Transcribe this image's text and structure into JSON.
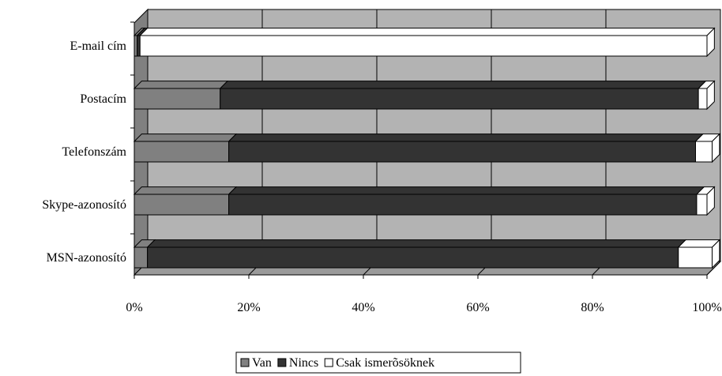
{
  "chart_data": {
    "type": "bar",
    "stacked": true,
    "orientation": "horizontal",
    "style": "3d",
    "categories": [
      "E-mail cím",
      "Postacím",
      "Telefonszám",
      "Skype-azonosító",
      "MSN-azonosító"
    ],
    "series": [
      {
        "name": "Van",
        "values": [
          0.5,
          15,
          16.5,
          16.5,
          2.3
        ],
        "color": "#808080"
      },
      {
        "name": "Nincs",
        "values": [
          0.5,
          83.5,
          81.5,
          81.7,
          92.7
        ],
        "color": "#333333"
      },
      {
        "name": "Csak ismerõsöknek",
        "values": [
          99,
          1.5,
          2.9,
          1.8,
          5.9
        ],
        "color": "#ffffff"
      }
    ],
    "x_ticks": [
      "0%",
      "20%",
      "40%",
      "60%",
      "80%",
      "100%"
    ],
    "xlim": [
      0,
      100
    ],
    "grid": true,
    "legend_position": "bottom",
    "wall_color": "#b3b3b3",
    "floor_color": "#9a9a9a",
    "side_wall_color": "#808080"
  }
}
